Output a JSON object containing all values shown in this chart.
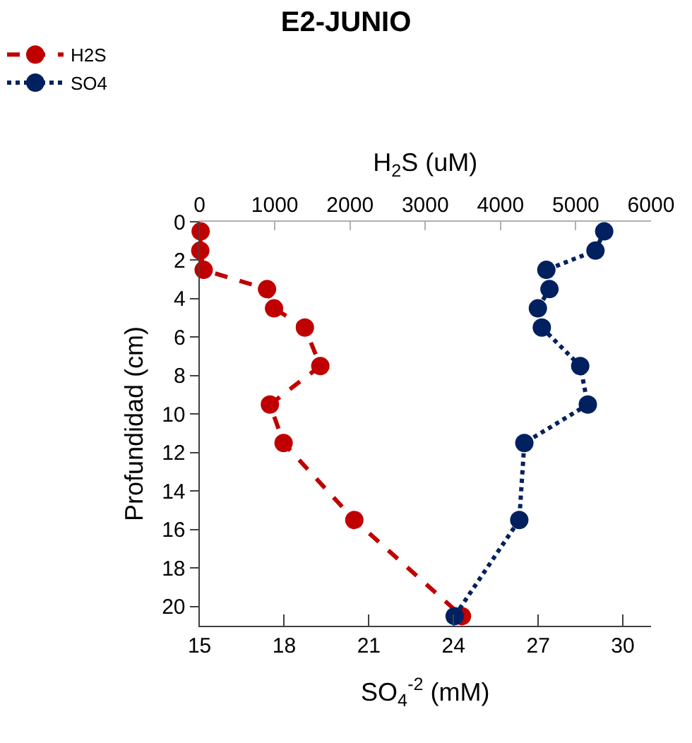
{
  "chart_data": {
    "type": "line",
    "title": "E2-JUNIO",
    "ylabel": "Profundidad (cm)",
    "xlabel": "SO$_{4}$$^{-2}$ (mM)",
    "x2label": "H$_{2}$S (uM)",
    "series": [
      {
        "name": "H2S",
        "color": "#c00000",
        "axis": "x2",
        "line_style": "dashed",
        "x": [
          15,
          10,
          55,
          897,
          990,
          1400,
          1605,
          935,
          1117,
          2057,
          3487
        ],
        "values": [
          0.5,
          1.5,
          2.5,
          3.5,
          4.5,
          5.5,
          7.5,
          9.5,
          11.5,
          15.5,
          20.5
        ]
      },
      {
        "name": "SO4",
        "color": "#002060",
        "line_style": "dotted",
        "x": [
          29.34,
          29.03,
          27.29,
          27.4,
          26.99,
          27.13,
          28.49,
          28.76,
          26.51,
          26.33,
          24.04
        ],
        "values": [
          0.5,
          1.5,
          2.5,
          3.5,
          4.5,
          5.5,
          7.5,
          9.5,
          11.5,
          15.5,
          20.5
        ]
      }
    ],
    "xlim": [
      15,
      31
    ],
    "xticks": [
      15,
      18,
      21,
      24,
      27,
      30
    ],
    "x2lim": [
      0,
      6000
    ],
    "x2ticks": [
      0,
      1000,
      2000,
      3000,
      4000,
      5000,
      6000
    ],
    "ylim": [
      21,
      0
    ],
    "yticks": [
      0,
      2,
      4,
      6,
      8,
      10,
      12,
      14,
      16,
      18,
      20
    ],
    "marker": "circle",
    "legend": "top left"
  }
}
